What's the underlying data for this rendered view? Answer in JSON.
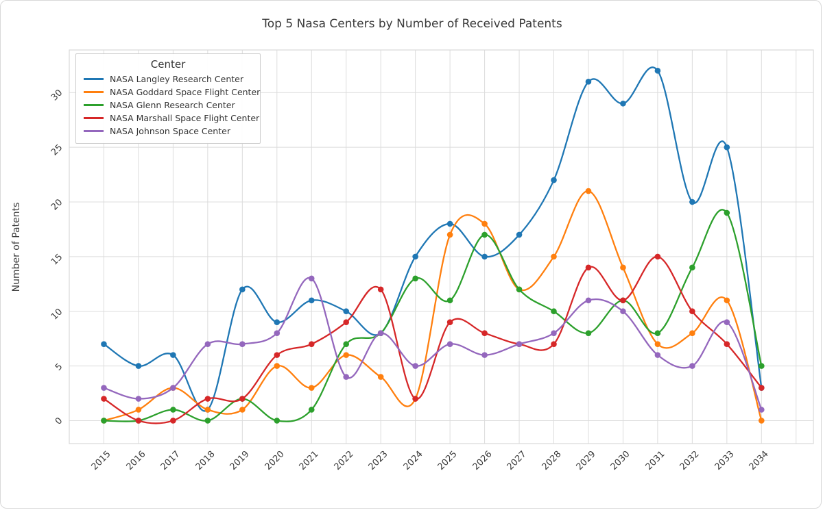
{
  "figure": {
    "border_color": "#d8d8d8",
    "background": "#ffffff",
    "grid_color": "#dcdcdc",
    "axes_edge_color": "#d8d8d8",
    "tick_color": "#3b3b3b",
    "text_color": "#3a3a3a"
  },
  "chart_data": {
    "type": "line",
    "title": "Top 5 Nasa Centers by Number of Received Patents",
    "xlabel": "",
    "ylabel": "Number of Patents",
    "legend_title": "Center",
    "legend_position": "upper left",
    "grid": true,
    "smooth": true,
    "marker": "o",
    "x": [
      2015,
      2016,
      2017,
      2018,
      2019,
      2020,
      2021,
      2022,
      2023,
      2024,
      2025,
      2026,
      2027,
      2028,
      2029,
      2030,
      2031,
      2032,
      2033,
      2034
    ],
    "yticks": [
      0,
      5,
      10,
      15,
      20,
      25,
      30
    ],
    "ylim": [
      -2.1,
      33.9
    ],
    "xlim": [
      2014,
      2035.5
    ],
    "series": [
      {
        "name": "NASA Langley Research Center",
        "color": "#1f77b4",
        "values": [
          7,
          5,
          6,
          1,
          12,
          9,
          11,
          10,
          8,
          15,
          18,
          15,
          17,
          22,
          31,
          29,
          32,
          20,
          25,
          3
        ]
      },
      {
        "name": "NASA Goddard Space Flight Center",
        "color": "#ff7f0e",
        "values": [
          0,
          1,
          3,
          1,
          1,
          5,
          3,
          6,
          4,
          2,
          17,
          18,
          12,
          15,
          21,
          14,
          7,
          8,
          11,
          0
        ]
      },
      {
        "name": "NASA Glenn Research Center",
        "color": "#2ca02c",
        "values": [
          0,
          0,
          1,
          0,
          2,
          0,
          1,
          7,
          8,
          13,
          11,
          17,
          12,
          10,
          8,
          11,
          8,
          14,
          19,
          5
        ]
      },
      {
        "name": "NASA Marshall Space Flight Center",
        "color": "#d62728",
        "values": [
          2,
          0,
          0,
          2,
          2,
          6,
          7,
          9,
          12,
          2,
          9,
          8,
          7,
          7,
          14,
          11,
          15,
          10,
          7,
          3
        ]
      },
      {
        "name": "NASA Johnson Space Center",
        "color": "#9467bd",
        "values": [
          3,
          2,
          3,
          7,
          7,
          8,
          13,
          4,
          8,
          5,
          7,
          6,
          7,
          8,
          11,
          10,
          6,
          5,
          9,
          1
        ]
      }
    ]
  }
}
